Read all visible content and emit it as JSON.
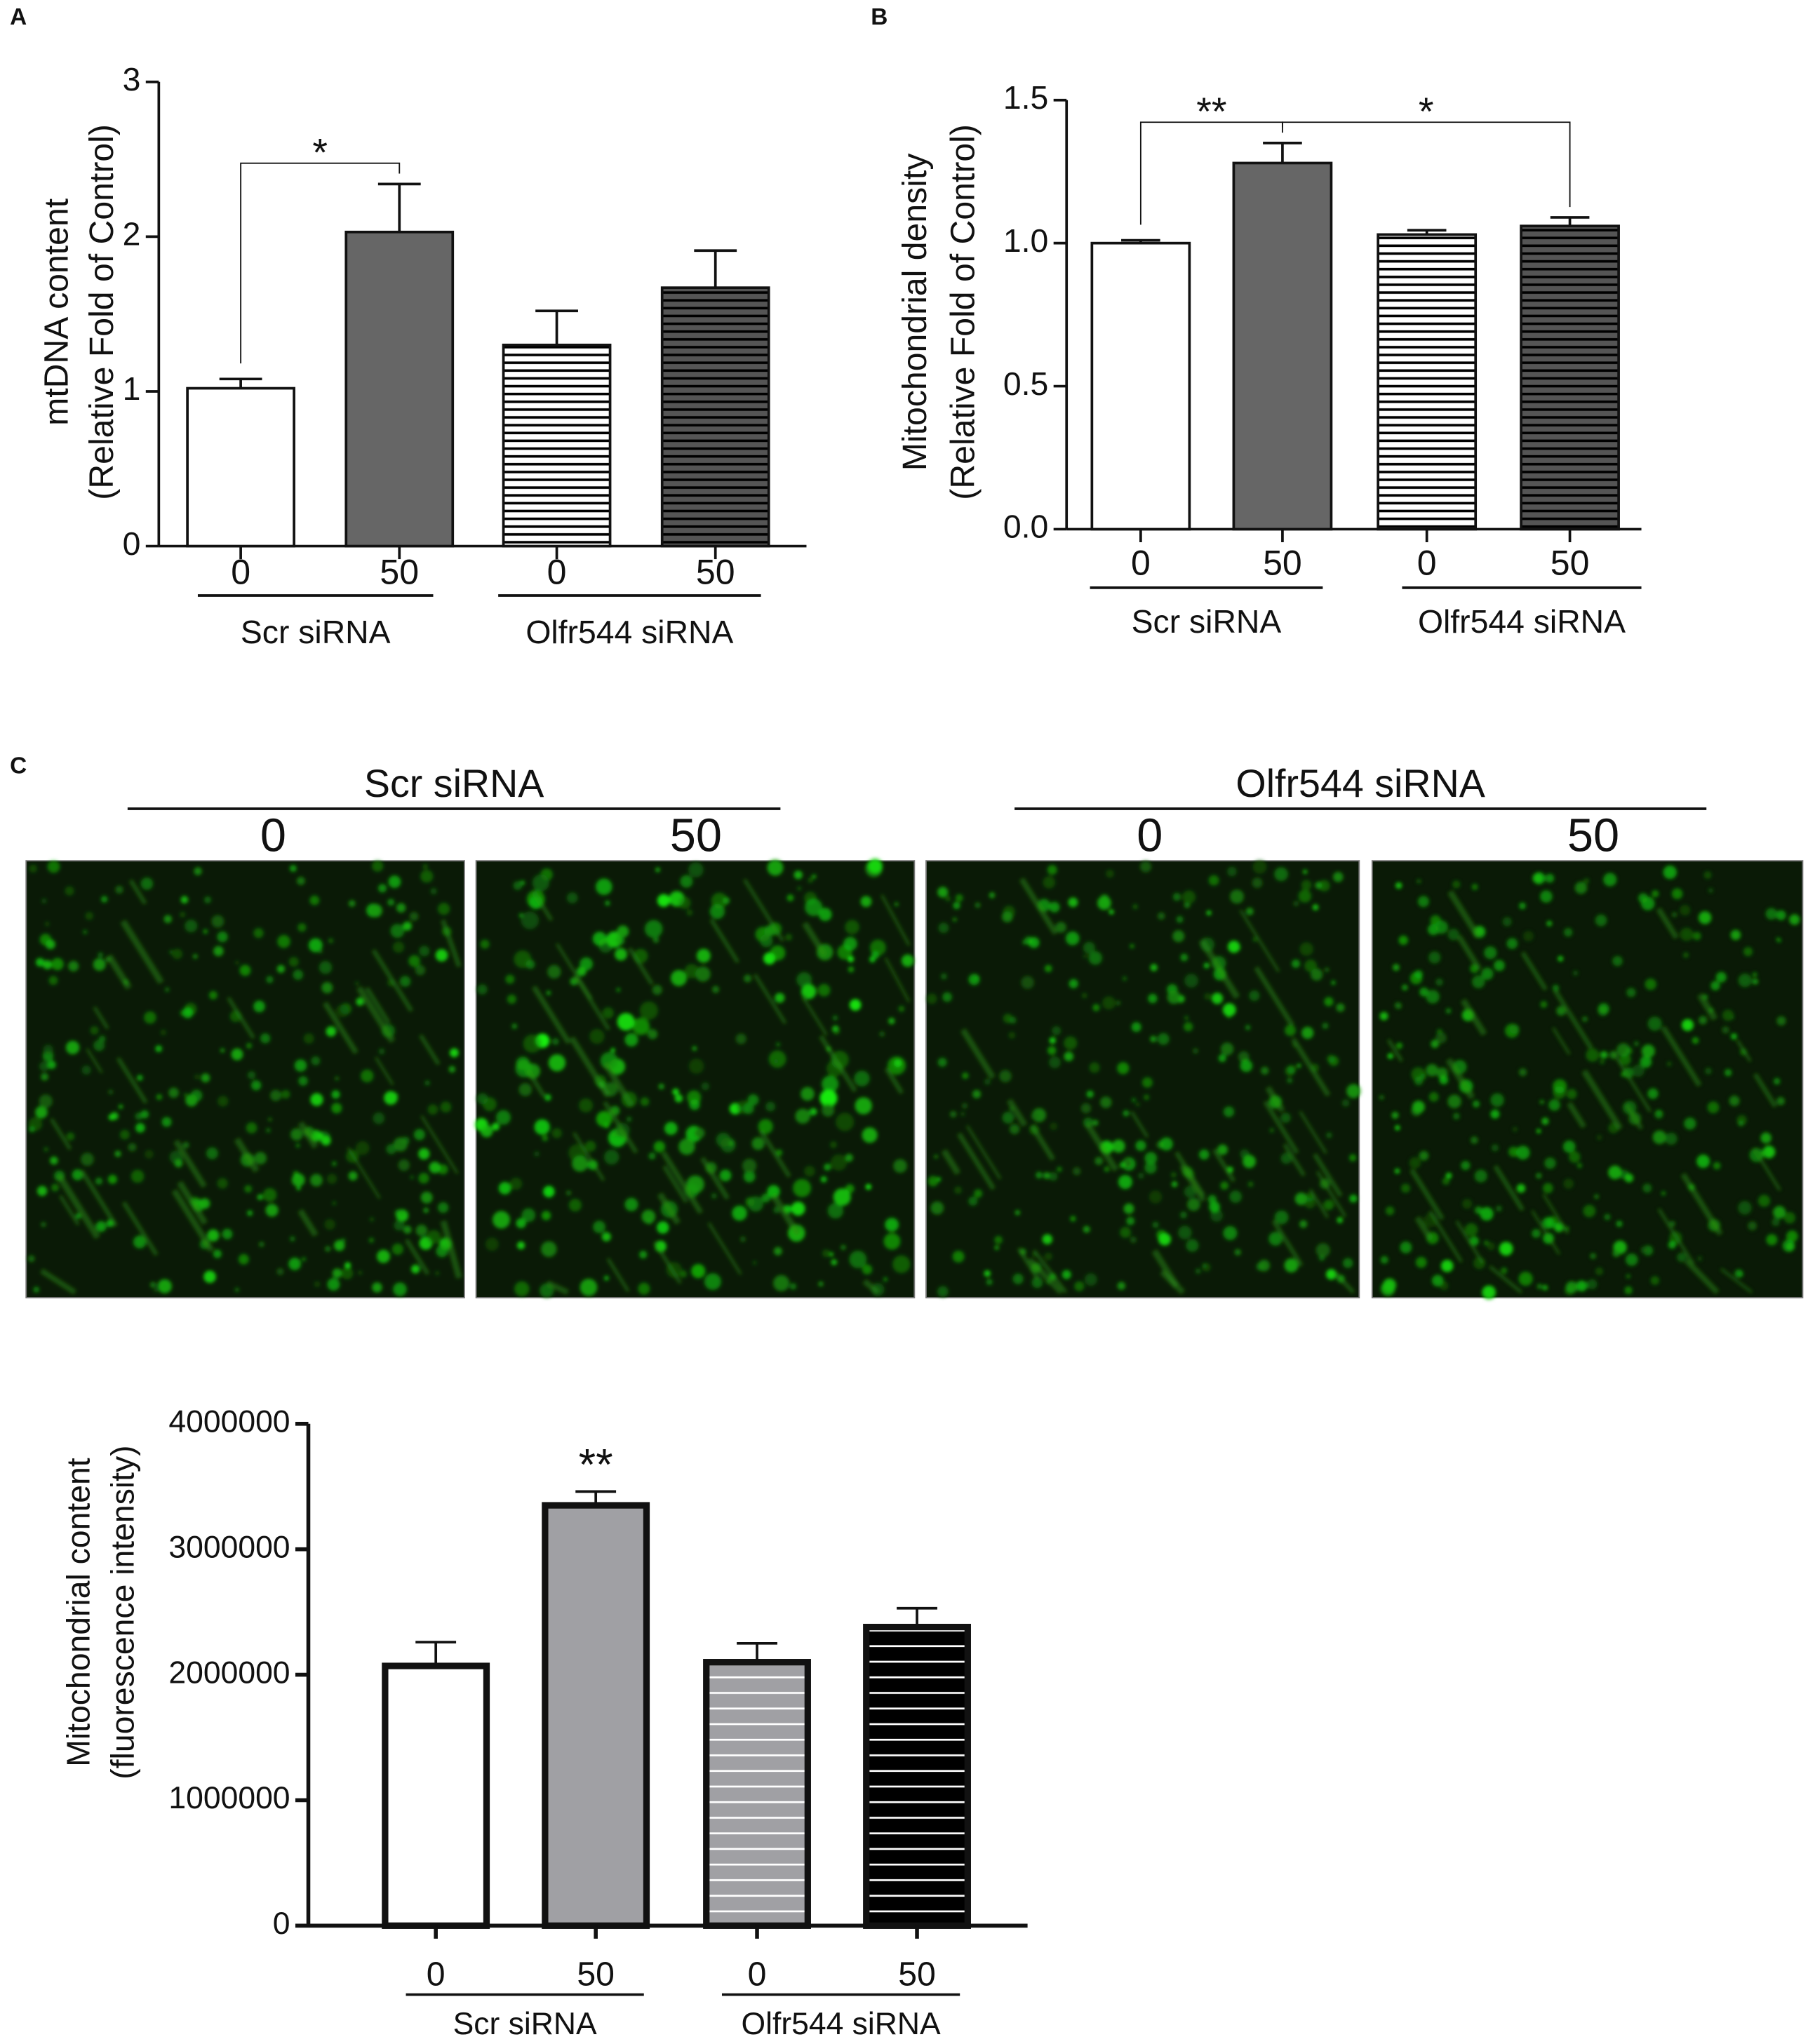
{
  "chart_data": [
    {
      "type": "bar",
      "panel": "A",
      "ylabel": [
        "mtDNA content",
        "(Relative Fold of Control)"
      ],
      "categories": [
        "0",
        "50",
        "0",
        "50"
      ],
      "groups": [
        "Scr siRNA",
        "Olfr544 siRNA"
      ],
      "values": [
        1.02,
        2.03,
        1.3,
        1.67
      ],
      "errors": [
        0.06,
        0.31,
        0.22,
        0.24
      ],
      "colors": [
        "#ffffff",
        "#666666",
        "#ffffff",
        "#555555"
      ],
      "hatch": [
        false,
        false,
        true,
        true
      ],
      "hatch_color": "#000000",
      "ylim": [
        0,
        3
      ],
      "yticks": [
        0,
        1,
        2,
        3
      ],
      "annotations": [
        {
          "text": "*",
          "between": [
            0,
            1
          ]
        }
      ]
    },
    {
      "type": "bar",
      "panel": "B",
      "ylabel": [
        "Mitochondrial density",
        "(Relative Fold of Control)"
      ],
      "categories": [
        "0",
        "50",
        "0",
        "50"
      ],
      "groups": [
        "Scr siRNA",
        "Olfr544 siRNA"
      ],
      "values": [
        1.0,
        1.28,
        1.03,
        1.06
      ],
      "errors": [
        0.01,
        0.07,
        0.015,
        0.03
      ],
      "colors": [
        "#ffffff",
        "#666666",
        "#ffffff",
        "#555555"
      ],
      "hatch": [
        false,
        false,
        true,
        true
      ],
      "hatch_color": "#000000",
      "ylim": [
        0,
        1.5
      ],
      "yticks": [
        {
          "value": 0,
          "label": "0.0"
        },
        {
          "value": 0.5,
          "label": "0.5"
        },
        {
          "value": 1,
          "label": "1.0"
        },
        {
          "value": 1.5,
          "label": "1.5"
        }
      ],
      "annotations": [
        {
          "text": "**",
          "between": [
            0,
            1
          ]
        },
        {
          "text": "*",
          "between": [
            1,
            3
          ]
        }
      ]
    },
    {
      "type": "bar",
      "ylabel": [
        "Mitochondrial content",
        "(fluorescence intensity)"
      ],
      "categories": [
        "0",
        "50",
        "0",
        "50"
      ],
      "groups": [
        "Scr siRNA",
        "Olfr544 siRNA"
      ],
      "values": [
        2070000,
        3350000,
        2100000,
        2380000
      ],
      "errors": [
        190000,
        110000,
        150000,
        150000
      ],
      "colors": [
        "#ffffff",
        "#a0a0a4",
        "#a0a0a4",
        "#000000"
      ],
      "hatch": [
        false,
        false,
        true,
        true
      ],
      "hatch_color": "#ffffff",
      "ylim": [
        0,
        4000000
      ],
      "yticks": [
        0,
        1000000,
        2000000,
        3000000,
        4000000
      ],
      "annotations": [
        {
          "text": "**",
          "at": 1
        }
      ]
    }
  ],
  "micrographs": {
    "panel": "C",
    "groups": [
      {
        "label": "Scr siRNA",
        "conditions": [
          "0",
          "50"
        ]
      },
      {
        "label": "Olfr544 siRNA",
        "conditions": [
          "0",
          "50"
        ]
      }
    ]
  }
}
